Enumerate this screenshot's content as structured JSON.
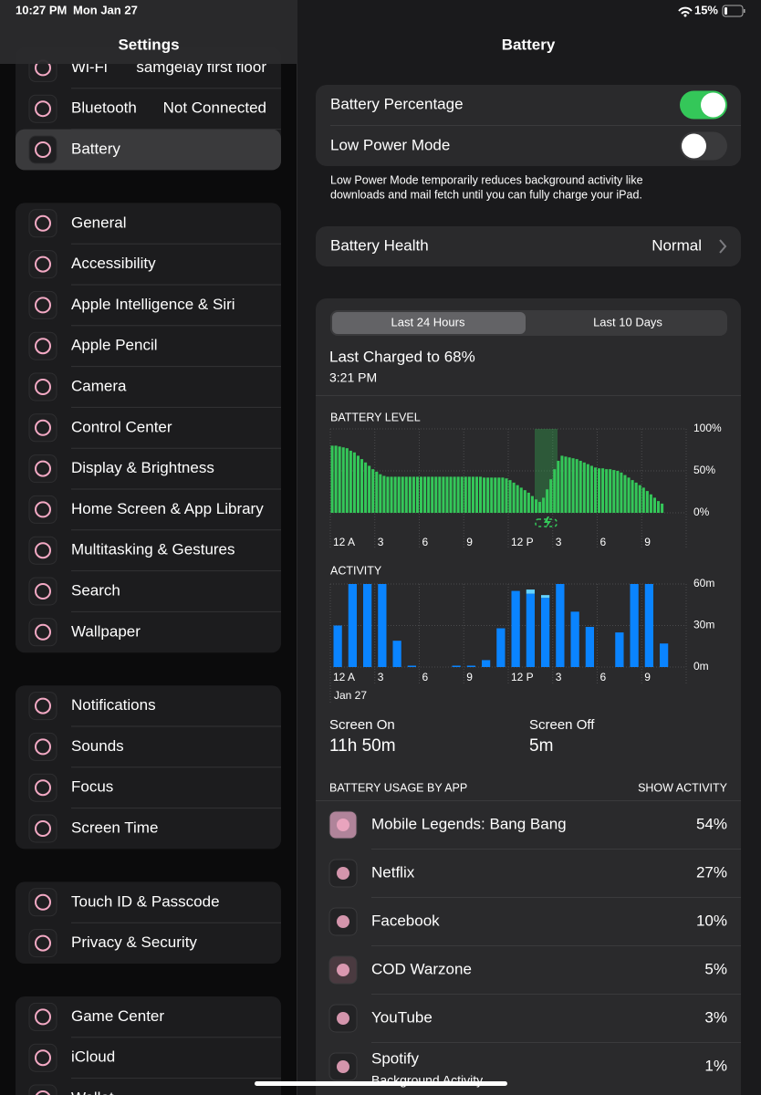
{
  "status_bar": {
    "time": "10:27 PM",
    "date": "Mon Jan 27",
    "battery": "15%"
  },
  "sidebar": {
    "title": "Settings",
    "groups": [
      [
        {
          "label": "Wi-Fi",
          "value": "samgelay first floor"
        },
        {
          "label": "Bluetooth",
          "value": "Not Connected"
        },
        {
          "label": "Battery",
          "selected": true
        }
      ],
      [
        {
          "label": "General"
        },
        {
          "label": "Accessibility"
        },
        {
          "label": "Apple Intelligence & Siri"
        },
        {
          "label": "Apple Pencil"
        },
        {
          "label": "Camera"
        },
        {
          "label": "Control Center"
        },
        {
          "label": "Display & Brightness"
        },
        {
          "label": "Home Screen & App Library"
        },
        {
          "label": "Multitasking & Gestures"
        },
        {
          "label": "Search"
        },
        {
          "label": "Wallpaper"
        }
      ],
      [
        {
          "label": "Notifications"
        },
        {
          "label": "Sounds"
        },
        {
          "label": "Focus"
        },
        {
          "label": "Screen Time"
        }
      ],
      [
        {
          "label": "Touch ID & Passcode"
        },
        {
          "label": "Privacy & Security"
        }
      ],
      [
        {
          "label": "Game Center"
        },
        {
          "label": "iCloud"
        },
        {
          "label": "Wallet"
        }
      ]
    ]
  },
  "detail": {
    "title": "Battery",
    "toggles": [
      {
        "label": "Battery Percentage",
        "on": true
      },
      {
        "label": "Low Power Mode",
        "on": false
      }
    ],
    "footnote": [
      "Low Power Mode temporarily reduces background activity like",
      "downloads and mail fetch until you can fully charge your iPad."
    ],
    "health": {
      "label": "Battery Health",
      "value": "Normal"
    },
    "segments": [
      "Last 24 Hours",
      "Last 10 Days"
    ],
    "last_charged": "Last Charged to 68%",
    "charged_time": "3:21 PM",
    "screen_totals": [
      "11h 50m",
      "5m"
    ],
    "usage_title": "BATTERY USAGE BY APP",
    "usage_action": "SHOW ACTIVITY",
    "apps": [
      {
        "name": "Mobile Legends: Bang Bang",
        "percent": "54%"
      },
      {
        "name": "Netflix",
        "percent": "27%"
      },
      {
        "name": "Facebook",
        "percent": "10%"
      },
      {
        "name": "COD Warzone",
        "percent": "5%"
      },
      {
        "name": "YouTube",
        "percent": "3%"
      },
      {
        "name": "Spotify",
        "subtitle": "Background Activity",
        "percent": "1%"
      }
    ]
  },
  "chart_data": [
    {
      "type": "bar",
      "title": "BATTERY LEVEL",
      "categories": [
        "12 A",
        null,
        null,
        null,
        null,
        null,
        null,
        null,
        null,
        null,
        null,
        null,
        "3",
        null,
        null,
        null,
        null,
        null,
        null,
        null,
        null,
        null,
        null,
        null,
        "6",
        null,
        null,
        null,
        null,
        null,
        null,
        null,
        null,
        null,
        null,
        null,
        "9",
        null,
        null,
        null,
        null,
        null,
        null,
        null,
        null,
        null,
        null,
        null,
        "12 P",
        null,
        null,
        null,
        null,
        null,
        null,
        null,
        null,
        null,
        null,
        null,
        "3",
        null,
        null,
        null,
        null,
        null,
        null,
        null,
        null,
        null,
        null,
        null,
        "6",
        null,
        null,
        null,
        null,
        null,
        null,
        null,
        null,
        null,
        null,
        null,
        "9",
        null,
        null,
        null,
        null,
        null,
        null,
        null,
        null,
        null,
        null,
        null
      ],
      "values": [
        80,
        80,
        79,
        78,
        77,
        74,
        72,
        68,
        64,
        60,
        56,
        52,
        49,
        46,
        44,
        43,
        43,
        43,
        43,
        43,
        43,
        43,
        43,
        43,
        43,
        43,
        43,
        43,
        43,
        43,
        43,
        43,
        43,
        43,
        43,
        43,
        43,
        43,
        43,
        43,
        43,
        42,
        42,
        42,
        42,
        42,
        42,
        41,
        39,
        36,
        33,
        30,
        27,
        24,
        20,
        16,
        13,
        18,
        28,
        40,
        52,
        62,
        68,
        67,
        66,
        65,
        64,
        62,
        60,
        58,
        56,
        54,
        53,
        53,
        52,
        52,
        51,
        50,
        48,
        45,
        42,
        39,
        36,
        33,
        30,
        26,
        22,
        18,
        14,
        11,
        null,
        null,
        null,
        null,
        null,
        null
      ],
      "color": "#34c759",
      "ylim": [
        0,
        100
      ],
      "yticks": [
        {
          "value": 0,
          "label": "0%"
        },
        {
          "value": 50,
          "label": "50%"
        },
        {
          "value": 100,
          "label": "100%"
        }
      ],
      "grid": true
    },
    {
      "type": "stacked_bar",
      "title": "ACTIVITY",
      "date_label": "Jan 27",
      "categories": [
        "12 A",
        null,
        null,
        "3",
        null,
        null,
        "6",
        null,
        null,
        "9",
        null,
        null,
        "12 P",
        null,
        null,
        "3",
        null,
        null,
        "6",
        null,
        null,
        "9",
        null,
        null
      ],
      "series": [
        {
          "name": "Screen On",
          "color": "#0a84ff",
          "values": [
            30,
            60,
            60,
            60,
            19,
            1,
            0,
            0,
            1,
            1,
            5,
            28,
            55,
            53,
            50,
            60,
            40,
            29,
            0,
            25,
            60,
            60,
            17,
            null
          ]
        },
        {
          "name": "Screen Off",
          "color": "#64d2ff",
          "values": [
            0,
            0,
            0,
            0,
            0,
            0,
            0,
            0,
            0,
            0,
            0,
            0,
            0,
            3,
            2,
            0,
            0,
            0,
            0,
            0,
            0,
            0,
            0,
            null
          ]
        }
      ],
      "ylim": [
        0,
        60
      ],
      "yticks": [
        {
          "value": 0,
          "label": "0m"
        },
        {
          "value": 30,
          "label": "30m"
        },
        {
          "value": 60,
          "label": "60m"
        }
      ],
      "grid": true
    }
  ]
}
